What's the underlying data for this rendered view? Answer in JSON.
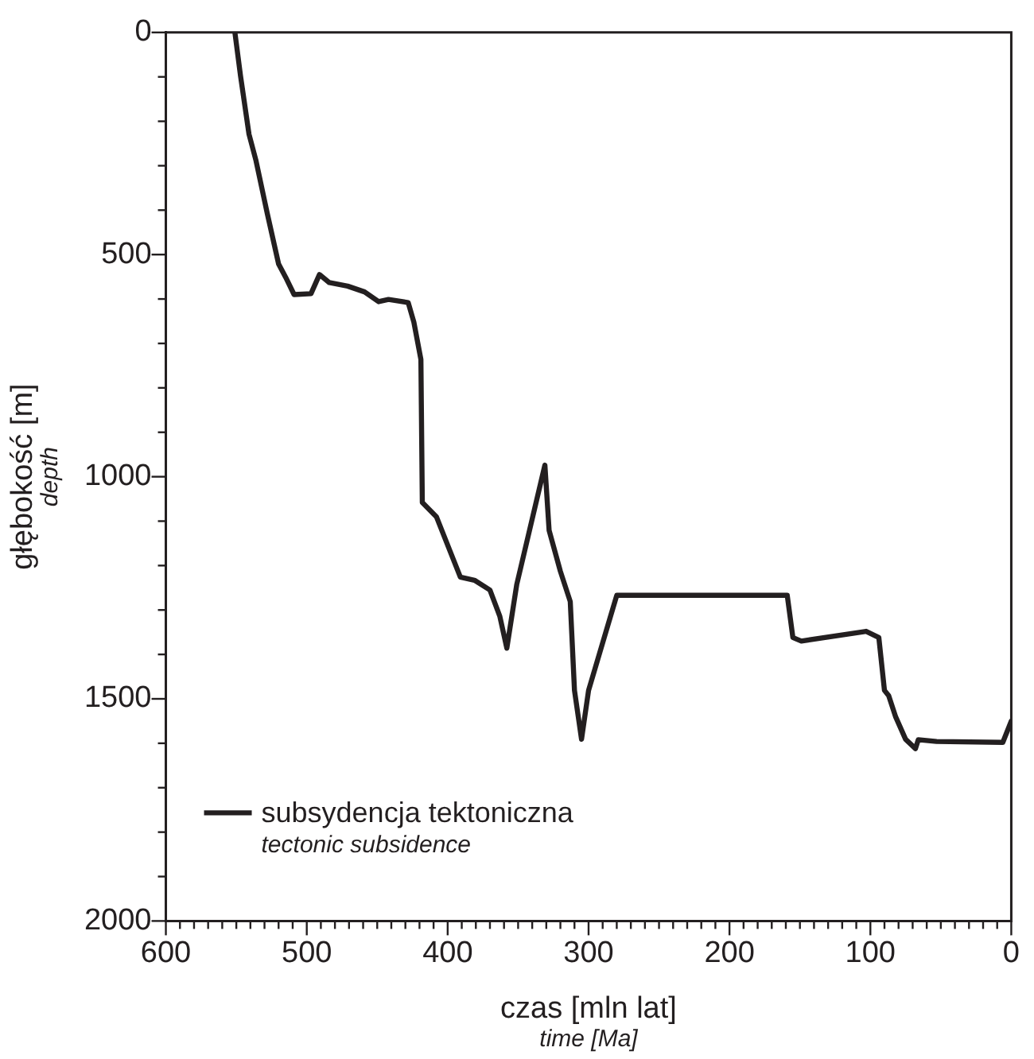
{
  "chart_data": {
    "type": "line",
    "xlabel": "czas [mln lat]\ntime [Ma]",
    "ylabel": "głębokość [m]\ndepth",
    "xlim": [
      600,
      0
    ],
    "ylim": [
      2000,
      0
    ],
    "xticks": [
      600,
      {
        "value": 590,
        "label": null
      },
      {
        "value": 580,
        "label": null
      },
      {
        "value": 570,
        "label": null
      },
      {
        "value": 560,
        "label": null
      },
      {
        "value": 550,
        "label": null
      },
      {
        "value": 540,
        "label": null
      },
      {
        "value": 530,
        "label": null
      },
      {
        "value": 520,
        "label": null
      },
      {
        "value": 510,
        "label": null
      },
      500,
      {
        "value": 490,
        "label": null
      },
      {
        "value": 480,
        "label": null
      },
      {
        "value": 470,
        "label": null
      },
      {
        "value": 460,
        "label": null
      },
      {
        "value": 450,
        "label": null
      },
      {
        "value": 440,
        "label": null
      },
      {
        "value": 430,
        "label": null
      },
      {
        "value": 420,
        "label": null
      },
      {
        "value": 410,
        "label": null
      },
      400,
      {
        "value": 390,
        "label": null
      },
      {
        "value": 380,
        "label": null
      },
      {
        "value": 370,
        "label": null
      },
      {
        "value": 360,
        "label": null
      },
      {
        "value": 350,
        "label": null
      },
      {
        "value": 340,
        "label": null
      },
      {
        "value": 330,
        "label": null
      },
      {
        "value": 320,
        "label": null
      },
      {
        "value": 310,
        "label": null
      },
      300,
      {
        "value": 290,
        "label": null
      },
      {
        "value": 280,
        "label": null
      },
      {
        "value": 270,
        "label": null
      },
      {
        "value": 260,
        "label": null
      },
      {
        "value": 250,
        "label": null
      },
      {
        "value": 240,
        "label": null
      },
      {
        "value": 230,
        "label": null
      },
      {
        "value": 220,
        "label": null
      },
      {
        "value": 210,
        "label": null
      },
      200,
      {
        "value": 190,
        "label": null
      },
      {
        "value": 180,
        "label": null
      },
      {
        "value": 170,
        "label": null
      },
      {
        "value": 160,
        "label": null
      },
      {
        "value": 150,
        "label": null
      },
      {
        "value": 140,
        "label": null
      },
      {
        "value": 130,
        "label": null
      },
      {
        "value": 120,
        "label": null
      },
      {
        "value": 110,
        "label": null
      },
      100,
      {
        "value": 90,
        "label": null
      },
      {
        "value": 80,
        "label": null
      },
      {
        "value": 70,
        "label": null
      },
      {
        "value": 60,
        "label": null
      },
      {
        "value": 50,
        "label": null
      },
      {
        "value": 40,
        "label": null
      },
      {
        "value": 30,
        "label": null
      },
      {
        "value": 20,
        "label": null
      },
      {
        "value": 10,
        "label": null
      },
      0
    ],
    "yticks": [
      0,
      {
        "value": 100,
        "label": null
      },
      {
        "value": 200,
        "label": null
      },
      {
        "value": 300,
        "label": null
      },
      {
        "value": 400,
        "label": null
      },
      500,
      {
        "value": 600,
        "label": null
      },
      {
        "value": 700,
        "label": null
      },
      {
        "value": 800,
        "label": null
      },
      {
        "value": 900,
        "label": null
      },
      1000,
      {
        "value": 1100,
        "label": null
      },
      {
        "value": 1200,
        "label": null
      },
      {
        "value": 1300,
        "label": null
      },
      {
        "value": 1400,
        "label": null
      },
      1500,
      {
        "value": 1600,
        "label": null
      },
      {
        "value": 1700,
        "label": null
      },
      {
        "value": 1800,
        "label": null
      },
      {
        "value": 1900,
        "label": null
      },
      2000
    ],
    "legend": "bottom left",
    "marker": "none",
    "line_style": "solid",
    "series": [
      {
        "name": "subsydencja tektoniczna\ntectonic subsidence",
        "color": "#231f20",
        "x": [
          551,
          547,
          541,
          536,
          528,
          520,
          515,
          509,
          497,
          491,
          484,
          471,
          459,
          449,
          442,
          428,
          424,
          419,
          418,
          408,
          391,
          381,
          370,
          363,
          358,
          351,
          331,
          328,
          320,
          313,
          310,
          305,
          300,
          280,
          159,
          155,
          149,
          103,
          94,
          90,
          87,
          82,
          75,
          68,
          66,
          53,
          6,
          0
        ],
        "values": [
          0,
          98,
          229,
          289,
          408,
          521,
          551,
          590,
          588,
          545,
          563,
          571,
          584,
          606,
          601,
          608,
          652,
          736,
          1058,
          1090,
          1226,
          1233,
          1255,
          1314,
          1386,
          1243,
          974,
          1121,
          1213,
          1281,
          1481,
          1591,
          1481,
          1267,
          1267,
          1362,
          1370,
          1348,
          1362,
          1481,
          1493,
          1541,
          1591,
          1612,
          1592,
          1596,
          1598,
          1550
        ]
      }
    ]
  }
}
